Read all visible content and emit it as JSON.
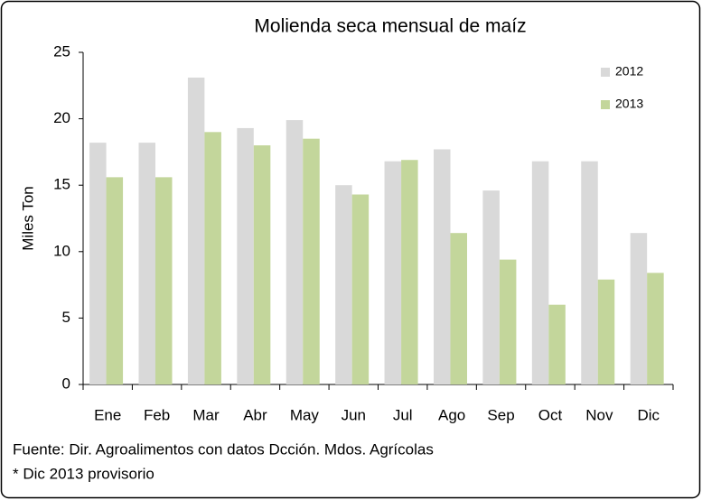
{
  "chart_data": {
    "type": "bar",
    "title": "Molienda seca mensual de maíz",
    "ylabel": "Miles Ton",
    "categories": [
      "Ene",
      "Feb",
      "Mar",
      "Abr",
      "May",
      "Jun",
      "Jul",
      "Ago",
      "Sep",
      "Oct",
      "Nov",
      "Dic"
    ],
    "series": [
      {
        "name": "2012",
        "color": "#d9d9d9",
        "values": [
          18.2,
          18.2,
          23.1,
          19.3,
          19.9,
          15.0,
          16.8,
          17.7,
          14.6,
          16.8,
          16.8,
          11.4
        ]
      },
      {
        "name": "2013",
        "color": "#c3d69b",
        "values": [
          15.6,
          15.6,
          19.0,
          18.0,
          18.5,
          14.3,
          16.9,
          11.4,
          9.4,
          6.0,
          7.9,
          8.4
        ]
      }
    ],
    "ylim": [
      0,
      25
    ],
    "yticks": [
      0,
      5,
      10,
      15,
      20,
      25
    ],
    "grid": false,
    "legend": "upper right",
    "notes": [
      "Fuente: Dir. Agroalimentos con datos Dcción. Mdos. Agrícolas",
      "* Dic 2013 provisorio"
    ]
  }
}
